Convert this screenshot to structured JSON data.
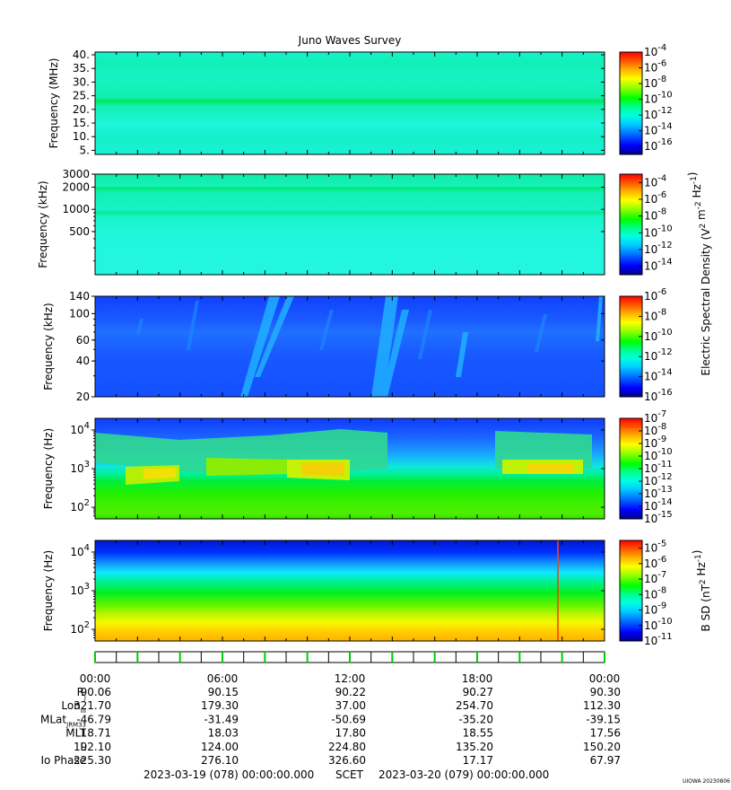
{
  "title": "Juno Waves Survey",
  "chart_data": [
    {
      "type": "heatmap",
      "panel": "waves-hfr-high",
      "ylabel": "Frequency (MHz)",
      "yscale": "linear",
      "ylim": [
        3.5,
        41
      ],
      "ytick_labels": [
        "5.",
        "10.",
        "15.",
        "20.",
        "25.",
        "30.",
        "35.",
        "40."
      ],
      "ytick_values": [
        5,
        10,
        15,
        20,
        25,
        30,
        35,
        40
      ],
      "colorbar": {
        "scale": "log",
        "range": [
          -17,
          -4
        ],
        "tick_exponents": [
          -4,
          -6,
          -8,
          -10,
          -12,
          -14,
          -16
        ],
        "label": ""
      }
    },
    {
      "type": "heatmap",
      "panel": "waves-hfr-low",
      "ylabel": "Frequency (kHz)",
      "yscale": "log",
      "ylim": [
        130,
        3000
      ],
      "ytick_labels": [
        "500",
        "1000",
        "2000",
        "3000"
      ],
      "ytick_values": [
        500,
        1000,
        2000,
        3000
      ],
      "colorbar": {
        "scale": "log",
        "range": [
          -15,
          -3
        ],
        "tick_exponents": [
          -4,
          -6,
          -8,
          -10,
          -12,
          -14
        ],
        "label": ""
      }
    },
    {
      "type": "heatmap",
      "panel": "waves-lfr-high",
      "ylabel": "Frequency (kHz)",
      "yscale": "log",
      "ylim": [
        20,
        140
      ],
      "ytick_labels": [
        "20",
        "40",
        "60",
        "100",
        "140"
      ],
      "ytick_values": [
        20,
        40,
        60,
        100,
        140
      ],
      "colorbar": {
        "scale": "log",
        "range": [
          -16,
          -6
        ],
        "tick_exponents": [
          -6,
          -8,
          -10,
          -12,
          -14,
          -16
        ],
        "label": ""
      }
    },
    {
      "type": "heatmap",
      "panel": "waves-lfr-low",
      "ylabel": "Frequency (Hz)",
      "yscale": "log",
      "ylim": [
        50,
        20000
      ],
      "ytick_labels": [
        "10^2",
        "10^3",
        "10^4"
      ],
      "ytick_values": [
        100,
        1000,
        10000
      ],
      "colorbar": {
        "scale": "log",
        "range": [
          -15,
          -7
        ],
        "tick_exponents": [
          -7,
          -8,
          -9,
          -10,
          -11,
          -12,
          -13,
          -14,
          -15
        ],
        "label": ""
      }
    },
    {
      "type": "heatmap",
      "panel": "waves-magnetic",
      "ylabel": "Frequency (Hz)",
      "yscale": "log",
      "ylim": [
        50,
        20000
      ],
      "ytick_labels": [
        "10^2",
        "10^3",
        "10^4"
      ],
      "ytick_values": [
        100,
        1000,
        10000
      ],
      "colorbar": {
        "scale": "log",
        "range": [
          -11,
          -4.5
        ],
        "tick_exponents": [
          -5,
          -6,
          -7,
          -8,
          -9,
          -10,
          -11
        ],
        "label": "B SD (nT^2 Hz^-1)"
      }
    }
  ],
  "shared_colorbar_label": "Electric Spectral Density (V^2 m^-2 Hz^-1)",
  "colorbar_base": "10",
  "time_axis": {
    "tick_labels": [
      "00:00",
      "06:00",
      "12:00",
      "18:00",
      "00:00"
    ],
    "tick_hours": [
      0,
      6,
      12,
      18,
      24
    ],
    "range_hours": [
      0,
      24
    ]
  },
  "ephemeris": [
    {
      "label": "R",
      "sub": "J",
      "values": [
        "90.06",
        "90.15",
        "90.22",
        "90.27",
        "90.30"
      ]
    },
    {
      "label": "Lon",
      "sub": "III",
      "values": [
        "321.70",
        "179.30",
        "37.00",
        "254.70",
        "112.30"
      ]
    },
    {
      "label": "MLat",
      "sub": "JRM33",
      "values": [
        "-46.79",
        "-31.49",
        "-50.69",
        "-35.20",
        "-39.15"
      ]
    },
    {
      "label": "MLT",
      "sub": "",
      "values": [
        "18.71",
        "18.03",
        "17.80",
        "18.55",
        "17.56"
      ]
    },
    {
      "label": "L",
      "sub": "",
      "values": [
        "192.10",
        "124.00",
        "224.80",
        "135.20",
        "150.20"
      ]
    },
    {
      "label": "Io Phase",
      "sub": "",
      "values": [
        "225.30",
        "276.10",
        "326.60",
        "17.17",
        "67.97"
      ]
    }
  ],
  "footer": {
    "start": "2023-03-19 (078) 00:00:00.000",
    "scet": "SCET",
    "end": "2023-03-20 (079) 00:00:00.000"
  },
  "credit": "UIOWA 20230806",
  "colors": {
    "colormap": [
      "#00008c",
      "#0000ff",
      "#0060ff",
      "#00c8ff",
      "#00ffdc",
      "#00ff8c",
      "#00ff00",
      "#a0ff00",
      "#ffff00",
      "#ffc800",
      "#ff8000",
      "#ff0000"
    ],
    "tick_marker": "#00cc00",
    "axis": "#000000"
  }
}
